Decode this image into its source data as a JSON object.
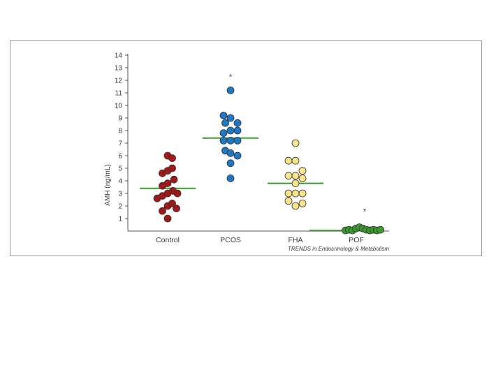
{
  "chart_data": {
    "type": "scatter",
    "subtype": "dot-plot-with-means",
    "title": "",
    "xlabel": "",
    "ylabel": "AMH (ng/mL)",
    "ylim": [
      0,
      14
    ],
    "yticks": [
      1,
      2,
      3,
      4,
      5,
      6,
      7,
      8,
      9,
      10,
      11,
      12,
      13,
      14
    ],
    "categories": [
      "Control",
      "PCOS",
      "FHA",
      "POF"
    ],
    "grid": false,
    "legend": "none",
    "mean_line_color": "#3a9a2e",
    "series": [
      {
        "category": "Control",
        "color": "#a01818",
        "mean": 3.4,
        "significance": "",
        "points": [
          {
            "x": -0.15,
            "y": 4.6
          },
          {
            "x": 0.0,
            "y": 6.0
          },
          {
            "x": 0.13,
            "y": 5.8
          },
          {
            "x": 0.0,
            "y": 4.8
          },
          {
            "x": 0.13,
            "y": 5.0
          },
          {
            "x": -0.15,
            "y": 3.6
          },
          {
            "x": 0.0,
            "y": 3.8
          },
          {
            "x": 0.18,
            "y": 4.1
          },
          {
            "x": -0.3,
            "y": 2.6
          },
          {
            "x": -0.15,
            "y": 2.8
          },
          {
            "x": 0.0,
            "y": 3.0
          },
          {
            "x": 0.15,
            "y": 3.2
          },
          {
            "x": 0.28,
            "y": 3.0
          },
          {
            "x": -0.15,
            "y": 1.6
          },
          {
            "x": 0.0,
            "y": 2.0
          },
          {
            "x": 0.13,
            "y": 2.2
          },
          {
            "x": 0.25,
            "y": 1.8
          },
          {
            "x": 0.0,
            "y": 1.0
          }
        ]
      },
      {
        "category": "PCOS",
        "color": "#1f78c4",
        "mean": 7.4,
        "significance": "*",
        "points": [
          {
            "x": 0.0,
            "y": 11.2
          },
          {
            "x": -0.2,
            "y": 9.2
          },
          {
            "x": 0.0,
            "y": 9.0
          },
          {
            "x": -0.15,
            "y": 8.6
          },
          {
            "x": 0.2,
            "y": 8.6
          },
          {
            "x": -0.2,
            "y": 7.8
          },
          {
            "x": 0.0,
            "y": 8.0
          },
          {
            "x": 0.2,
            "y": 8.0
          },
          {
            "x": -0.2,
            "y": 7.2
          },
          {
            "x": 0.0,
            "y": 7.2
          },
          {
            "x": 0.2,
            "y": 7.2
          },
          {
            "x": -0.15,
            "y": 6.4
          },
          {
            "x": 0.0,
            "y": 6.2
          },
          {
            "x": 0.2,
            "y": 6.0
          },
          {
            "x": 0.0,
            "y": 5.4
          },
          {
            "x": 0.0,
            "y": 4.2
          }
        ]
      },
      {
        "category": "FHA",
        "color": "#fbe48a",
        "mean": 3.8,
        "significance": "",
        "points": [
          {
            "x": 0.0,
            "y": 7.0
          },
          {
            "x": -0.2,
            "y": 5.6
          },
          {
            "x": 0.0,
            "y": 5.6
          },
          {
            "x": 0.2,
            "y": 4.8
          },
          {
            "x": -0.2,
            "y": 4.4
          },
          {
            "x": 0.0,
            "y": 4.4
          },
          {
            "x": 0.2,
            "y": 4.2
          },
          {
            "x": 0.0,
            "y": 3.8
          },
          {
            "x": -0.2,
            "y": 3.0
          },
          {
            "x": 0.0,
            "y": 3.0
          },
          {
            "x": 0.2,
            "y": 3.0
          },
          {
            "x": -0.2,
            "y": 2.4
          },
          {
            "x": 0.0,
            "y": 2.0
          },
          {
            "x": 0.2,
            "y": 2.2
          }
        ]
      },
      {
        "category": "POF",
        "color": "#3a9a2e",
        "mean": 0.05,
        "significance": "*",
        "points": [
          {
            "x": -0.45,
            "y": 0.0
          },
          {
            "x": -0.35,
            "y": 0.05
          },
          {
            "x": -0.25,
            "y": 0.0
          },
          {
            "x": -0.15,
            "y": 0.15
          },
          {
            "x": -0.05,
            "y": 0.25
          },
          {
            "x": 0.05,
            "y": 0.15
          },
          {
            "x": 0.15,
            "y": 0.05
          },
          {
            "x": 0.25,
            "y": 0.0
          },
          {
            "x": 0.35,
            "y": 0.05
          },
          {
            "x": 0.45,
            "y": 0.0
          },
          {
            "x": 0.55,
            "y": 0.05
          }
        ]
      }
    ],
    "credit": "TRENDS in Endocrinology & Metabolism"
  }
}
